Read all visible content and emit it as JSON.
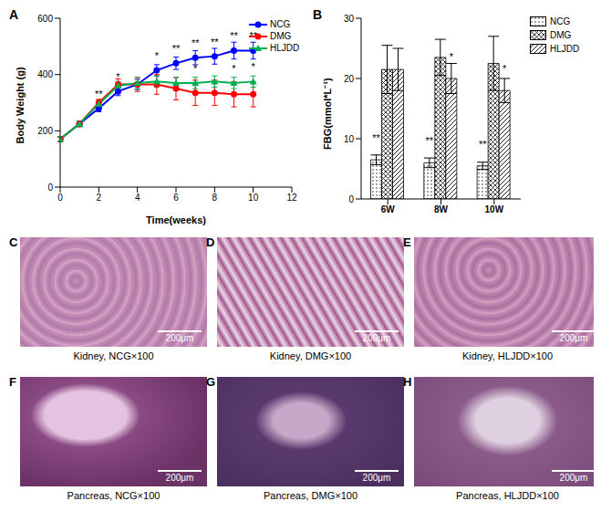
{
  "chart_data": [
    {
      "panel_label": "A",
      "type": "line",
      "x": [
        0,
        1,
        2,
        3,
        4,
        5,
        6,
        7,
        8,
        9,
        10
      ],
      "xlim": [
        0,
        12
      ],
      "xticks": [
        0,
        2,
        4,
        6,
        8,
        10,
        12
      ],
      "ylim": [
        0,
        600
      ],
      "yticks": [
        0,
        200,
        400,
        600
      ],
      "x_label": "Time(weeks)",
      "y_label": "Body Weight (g)",
      "legend": "upper right",
      "series": [
        {
          "name": "NCG",
          "color": "#0000ff",
          "marker": "circle",
          "values": [
            170,
            225,
            280,
            340,
            365,
            415,
            440,
            460,
            465,
            485,
            485
          ],
          "errors": [
            8,
            10,
            12,
            15,
            18,
            20,
            22,
            25,
            28,
            30,
            30
          ],
          "annotations": [
            null,
            null,
            "**",
            "*",
            null,
            "*",
            "**",
            "**",
            "**",
            "**",
            "**"
          ]
        },
        {
          "name": "DMG",
          "color": "#ff0000",
          "marker": "circle",
          "values": [
            170,
            225,
            300,
            365,
            365,
            365,
            350,
            335,
            335,
            330,
            330
          ],
          "errors": [
            8,
            10,
            12,
            20,
            25,
            35,
            40,
            45,
            45,
            45,
            45
          ],
          "annotations": [
            null,
            null,
            null,
            null,
            null,
            null,
            null,
            null,
            null,
            null,
            null
          ]
        },
        {
          "name": "HLJDD",
          "color": "#00b050",
          "marker": "triangle",
          "values": [
            170,
            225,
            295,
            360,
            370,
            375,
            370,
            370,
            375,
            370,
            375
          ],
          "errors": [
            8,
            10,
            12,
            15,
            20,
            20,
            20,
            20,
            20,
            20,
            20
          ],
          "annotations": [
            null,
            null,
            null,
            null,
            null,
            null,
            null,
            "*",
            null,
            "*",
            "*"
          ]
        }
      ]
    },
    {
      "panel_label": "B",
      "type": "bar",
      "categories": [
        "6W",
        "8W",
        "10W"
      ],
      "ylim": [
        0,
        30
      ],
      "yticks": [
        0,
        10,
        20,
        30
      ],
      "y_label": "FBG(mmol*L⁻¹)",
      "legend": "upper right",
      "series": [
        {
          "name": "NCG",
          "color": "#000000",
          "values": [
            6.5,
            6,
            5.5
          ],
          "errors": [
            0.8,
            0.8,
            0.6
          ],
          "annotations": [
            "**",
            "**",
            "**"
          ]
        },
        {
          "name": "DMG",
          "color": "#000000",
          "values": [
            21.5,
            23.5,
            22.5
          ],
          "errors": [
            4,
            3,
            4.5
          ],
          "annotations": [
            null,
            null,
            null
          ]
        },
        {
          "name": "HLJDD",
          "color": "#000000",
          "values": [
            21.5,
            20,
            18
          ],
          "errors": [
            3.5,
            2.5,
            2
          ],
          "annotations": [
            null,
            "*",
            "*"
          ]
        }
      ]
    }
  ],
  "images": [
    {
      "panel_label": "C",
      "caption": "Kidney, NCG×100",
      "scale_bar": "200μm"
    },
    {
      "panel_label": "D",
      "caption": "Kidney, DMG×100",
      "scale_bar": "200μm"
    },
    {
      "panel_label": "E",
      "caption": "Kidney, HLJDD×100",
      "scale_bar": "200μm"
    },
    {
      "panel_label": "F",
      "caption": "Pancreas, NCG×100",
      "scale_bar": "200μm"
    },
    {
      "panel_label": "G",
      "caption": "Pancreas, DMG×100",
      "scale_bar": "200μm"
    },
    {
      "panel_label": "H",
      "caption": "Pancreas, HLJDD×100",
      "scale_bar": "200μm"
    }
  ]
}
